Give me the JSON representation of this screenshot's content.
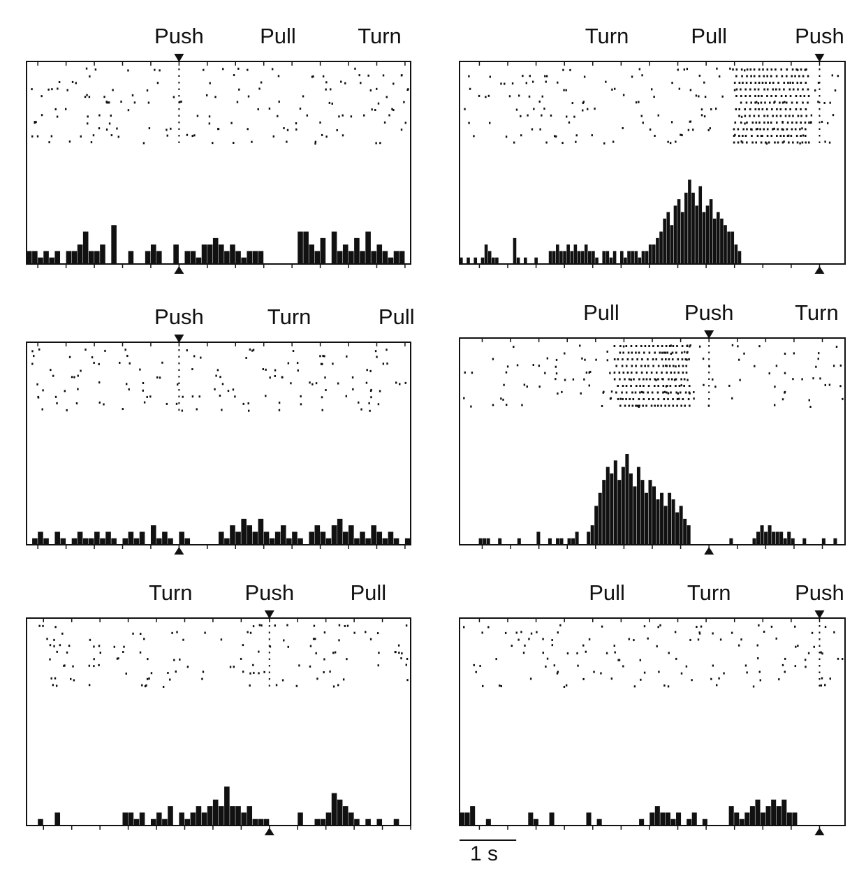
{
  "figure": {
    "scale_bar_label": "1 s",
    "colors": {
      "ink": "#111111",
      "background": "#ffffff"
    }
  },
  "chart_data": [
    {
      "type": "raster-histogram",
      "events": [
        "Push",
        "Pull",
        "Turn"
      ],
      "event_times_s": [
        0.0,
        1.75,
        3.55
      ],
      "aligned_event": "Push",
      "x_range_s": [
        -2.7,
        4.1
      ],
      "trials": 12,
      "spike_density": "low",
      "histogram": [
        2,
        2,
        1,
        2,
        1,
        2,
        0,
        2,
        2,
        3,
        5,
        2,
        2,
        3,
        0,
        6,
        0,
        0,
        2,
        0,
        0,
        2,
        3,
        2,
        0,
        0,
        3,
        0,
        2,
        2,
        1,
        3,
        3,
        4,
        3,
        2,
        3,
        2,
        1,
        2,
        2,
        2,
        0,
        0,
        0,
        0,
        0,
        0,
        5,
        5,
        3,
        2,
        4,
        0,
        5,
        2,
        3,
        2,
        4,
        2,
        5,
        2,
        3,
        2,
        1,
        2,
        2,
        0
      ]
    },
    {
      "type": "raster-histogram",
      "events": [
        "Turn",
        "Pull",
        "Push"
      ],
      "event_times_s": [
        -3.75,
        -1.95,
        0.0
      ],
      "aligned_event": "Push",
      "x_range_s": [
        -6.35,
        0.45
      ],
      "trials": 12,
      "spike_density": "low-then-burst-before-push",
      "histogram": [
        1,
        0,
        1,
        0,
        1,
        0,
        1,
        3,
        2,
        1,
        1,
        0,
        0,
        0,
        0,
        4,
        1,
        0,
        1,
        0,
        0,
        1,
        0,
        0,
        0,
        2,
        2,
        3,
        2,
        2,
        3,
        2,
        3,
        2,
        2,
        3,
        2,
        2,
        1,
        0,
        2,
        2,
        1,
        2,
        0,
        2,
        1,
        2,
        2,
        2,
        1,
        2,
        2,
        3,
        3,
        4,
        5,
        7,
        8,
        6,
        9,
        10,
        8,
        11,
        13,
        11,
        9,
        12,
        8,
        9,
        10,
        7,
        8,
        7,
        6,
        5,
        5,
        3,
        2,
        0,
        0,
        0,
        0,
        0,
        0,
        0,
        0,
        0,
        0,
        0,
        0,
        0,
        0,
        0,
        0,
        0,
        0,
        0,
        0,
        0,
        0,
        0,
        0,
        0,
        0,
        0,
        0,
        0
      ]
    },
    {
      "type": "raster-histogram",
      "events": [
        "Push",
        "Turn",
        "Pull"
      ],
      "event_times_s": [
        0.0,
        1.95,
        3.85
      ],
      "aligned_event": "Push",
      "x_range_s": [
        -2.7,
        4.1
      ],
      "trials": 10,
      "spike_density": "low",
      "histogram": [
        0,
        1,
        2,
        1,
        0,
        2,
        1,
        0,
        1,
        2,
        1,
        1,
        2,
        1,
        2,
        1,
        0,
        1,
        2,
        1,
        2,
        0,
        3,
        1,
        2,
        1,
        0,
        2,
        1,
        0,
        0,
        0,
        0,
        0,
        2,
        1,
        3,
        2,
        4,
        3,
        2,
        4,
        2,
        1,
        2,
        3,
        1,
        2,
        1,
        0,
        2,
        3,
        2,
        1,
        3,
        4,
        2,
        3,
        1,
        2,
        1,
        3,
        2,
        1,
        2,
        1,
        0,
        1
      ]
    },
    {
      "type": "raster-histogram",
      "events": [
        "Pull",
        "Push",
        "Turn"
      ],
      "event_times_s": [
        -1.9,
        0.0,
        1.9
      ],
      "aligned_event": "Push",
      "x_range_s": [
        -4.4,
        2.4
      ],
      "trials": 10,
      "spike_density": "burst-between-pull-and-push",
      "histogram": [
        0,
        0,
        0,
        0,
        0,
        1,
        1,
        1,
        0,
        0,
        1,
        0,
        0,
        0,
        0,
        1,
        0,
        0,
        0,
        0,
        2,
        0,
        0,
        1,
        0,
        1,
        1,
        0,
        1,
        1,
        2,
        0,
        0,
        2,
        3,
        6,
        8,
        10,
        12,
        11,
        13,
        10,
        12,
        14,
        11,
        9,
        12,
        10,
        8,
        10,
        9,
        7,
        8,
        6,
        8,
        7,
        5,
        6,
        4,
        3,
        0,
        0,
        0,
        0,
        0,
        0,
        0,
        0,
        0,
        0,
        1,
        0,
        0,
        0,
        0,
        0,
        1,
        2,
        3,
        2,
        3,
        2,
        2,
        2,
        1,
        2,
        1,
        0,
        0,
        1,
        0,
        0,
        0,
        0,
        1,
        0,
        0,
        1,
        0,
        0
      ]
    },
    {
      "type": "raster-histogram",
      "events": [
        "Turn",
        "Push",
        "Pull"
      ],
      "event_times_s": [
        -1.75,
        0.0,
        1.75
      ],
      "aligned_event": "Push",
      "x_range_s": [
        -4.3,
        2.5
      ],
      "trials": 10,
      "spike_density": "low",
      "histogram": [
        0,
        0,
        1,
        0,
        0,
        2,
        0,
        0,
        0,
        0,
        0,
        0,
        0,
        0,
        0,
        0,
        0,
        2,
        2,
        1,
        2,
        0,
        1,
        2,
        1,
        3,
        0,
        2,
        1,
        2,
        3,
        2,
        3,
        4,
        3,
        6,
        3,
        3,
        2,
        3,
        1,
        1,
        1,
        0,
        0,
        0,
        0,
        0,
        2,
        0,
        0,
        1,
        1,
        2,
        5,
        4,
        3,
        2,
        1,
        0,
        1,
        0,
        1,
        0,
        0,
        1,
        0,
        0
      ]
    },
    {
      "type": "raster-histogram",
      "events": [
        "Pull",
        "Turn",
        "Push"
      ],
      "event_times_s": [
        -3.75,
        -1.95,
        0.0
      ],
      "aligned_event": "Push",
      "x_range_s": [
        -6.35,
        0.45
      ],
      "trials": 10,
      "spike_density": "low",
      "histogram": [
        2,
        2,
        3,
        0,
        0,
        1,
        0,
        0,
        0,
        0,
        0,
        0,
        0,
        2,
        1,
        0,
        0,
        2,
        0,
        0,
        0,
        0,
        0,
        0,
        2,
        0,
        1,
        0,
        0,
        0,
        0,
        0,
        0,
        0,
        1,
        0,
        2,
        3,
        2,
        2,
        1,
        2,
        0,
        1,
        2,
        0,
        1,
        0,
        0,
        0,
        0,
        3,
        2,
        1,
        2,
        3,
        4,
        2,
        3,
        4,
        3,
        4,
        2,
        2,
        0,
        0,
        0,
        0,
        0,
        0,
        0,
        0,
        0
      ]
    }
  ]
}
